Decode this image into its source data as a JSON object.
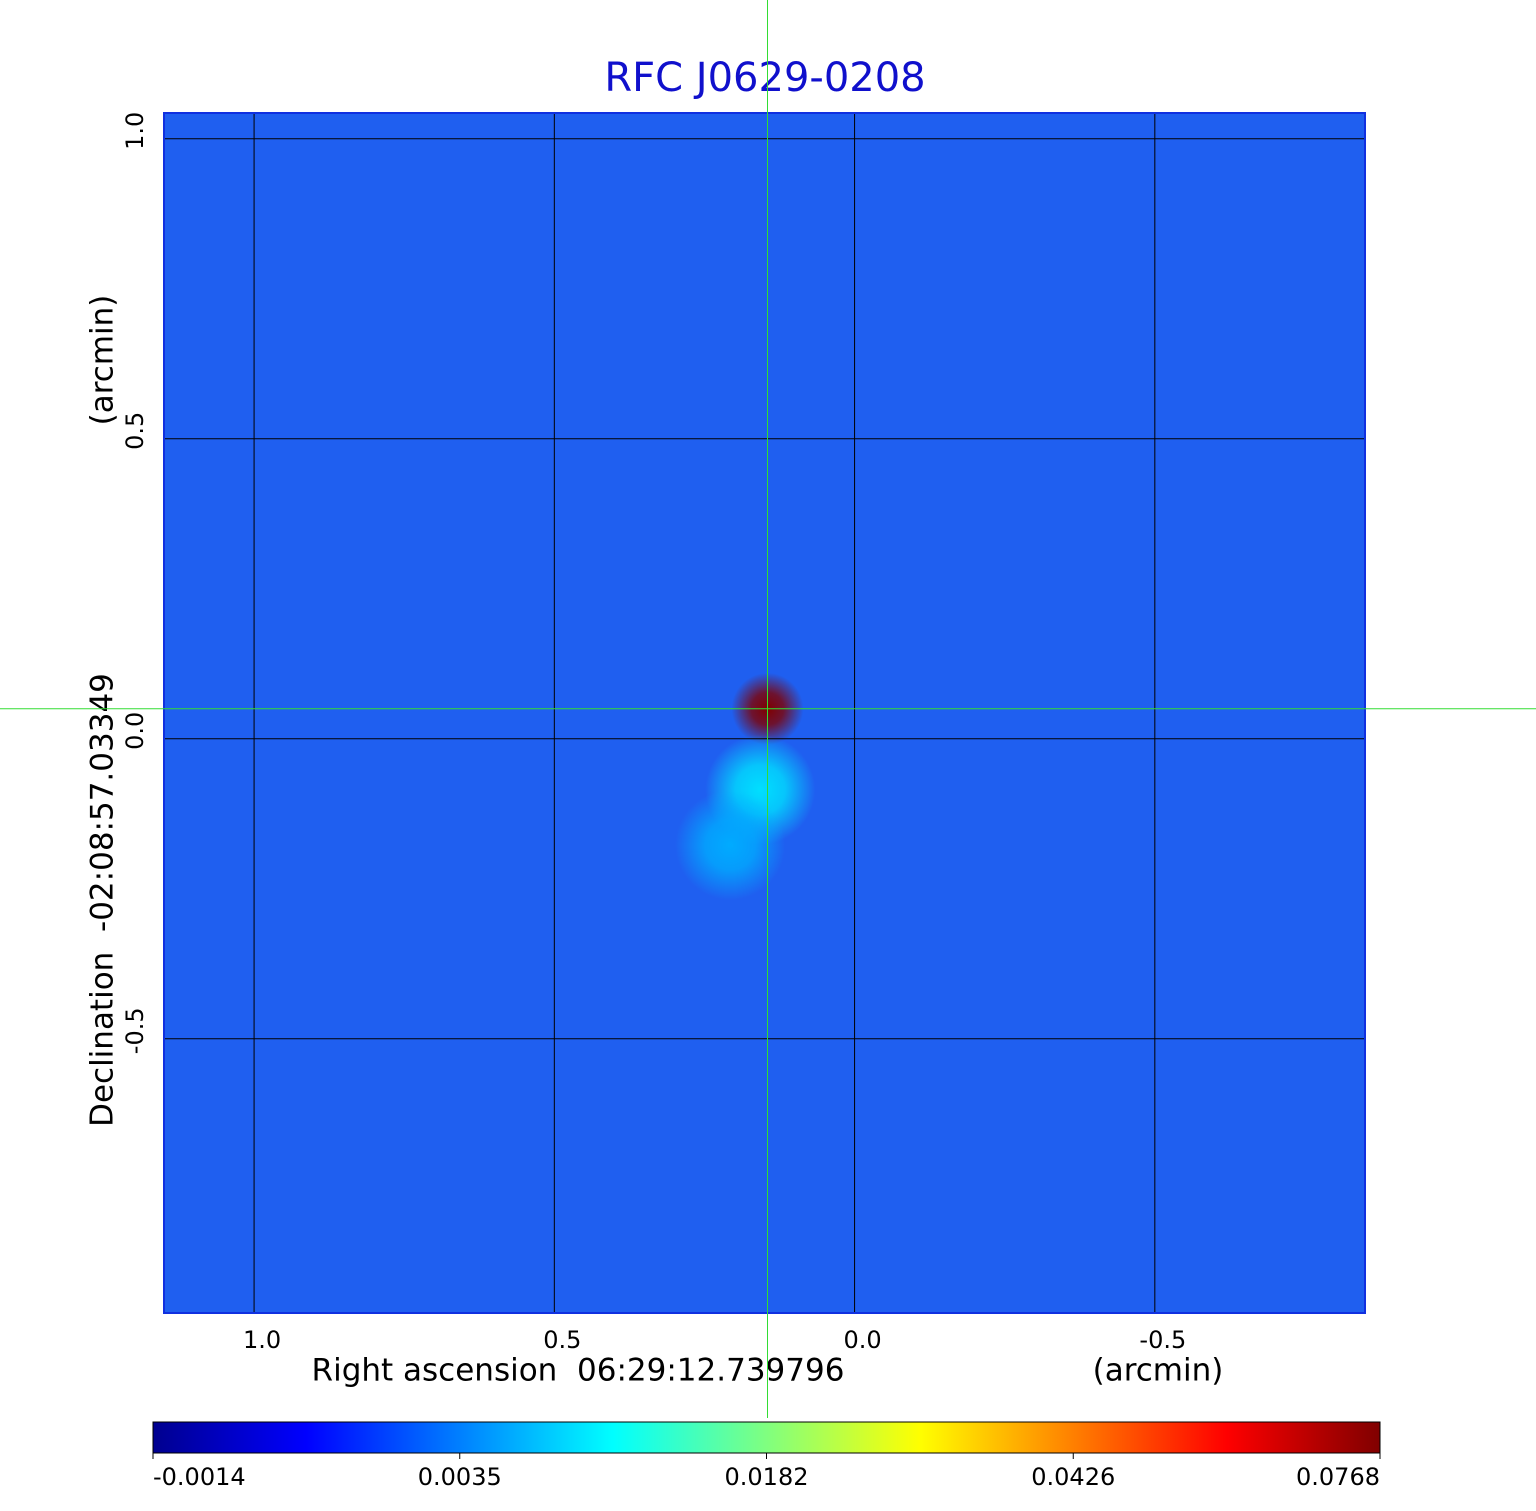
{
  "chart_data": {
    "type": "image",
    "title": "RFC J0629-0208",
    "xlabel": "Right ascension  06:29:12.739796",
    "xunit": "(arcmin)",
    "ylabel": "Declination  -02:08:57.03349",
    "yunit": "(arcmin)",
    "xlim": [
      1.15,
      -0.85
    ],
    "ylim": [
      -0.957,
      1.043
    ],
    "xticks": [
      {
        "value": 1,
        "label": "1.0"
      },
      {
        "value": 0.5,
        "label": "0.5"
      },
      {
        "value": 0,
        "label": "0.0"
      },
      {
        "value": -0.5,
        "label": "-0.5"
      }
    ],
    "yticks": [
      {
        "value": 1,
        "label": "1.0"
      },
      {
        "value": 0.5,
        "label": "0.5"
      },
      {
        "value": 0,
        "label": "0.0"
      },
      {
        "value": -0.5,
        "label": "-0.5"
      }
    ],
    "grid": true,
    "background_color": "#1f5ff0",
    "crosshair": {
      "x": 0.145,
      "y": 0.05,
      "color": "#33dd33"
    },
    "sources": {
      "x": [
        0.145,
        0.157,
        0.207
      ],
      "y": [
        0.05,
        -0.085,
        -0.177
      ],
      "values": [
        0.0768,
        0.009,
        0.006
      ]
    },
    "colorbar_ticks": [
      -0.0014,
      0.0035,
      0.0182,
      0.0426,
      0.0768
    ]
  }
}
